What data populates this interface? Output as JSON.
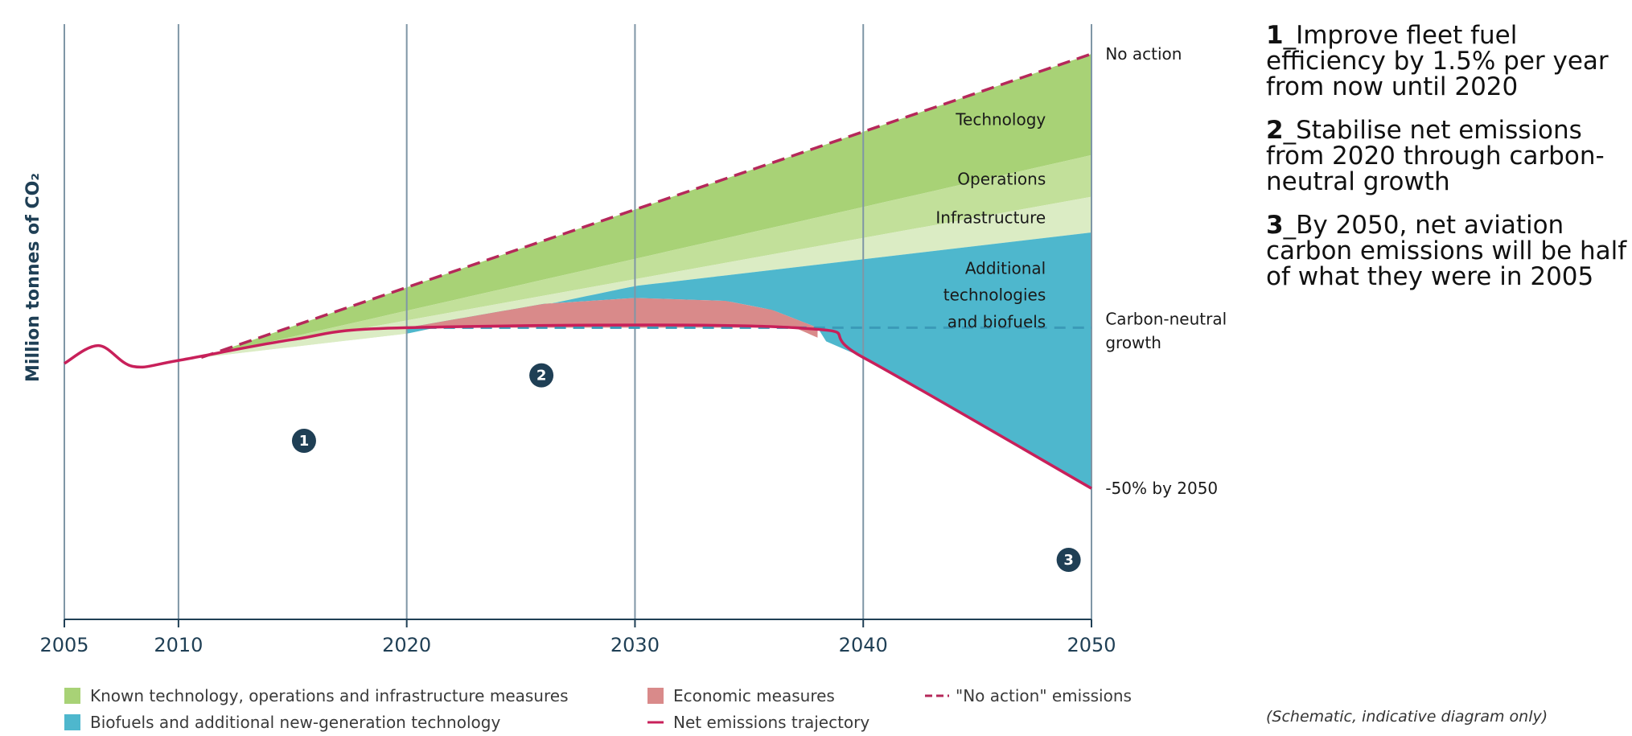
{
  "chart_data": {
    "type": "area",
    "title": "",
    "ylabel": "Million tonnes of CO₂",
    "xlabel": "",
    "xlim": [
      2005,
      2050
    ],
    "ylim": [
      0,
      100
    ],
    "x_ticks": [
      "2005",
      "2010",
      "2020",
      "2030",
      "2040",
      "2050"
    ],
    "grid": true,
    "schematic": true,
    "series": [
      {
        "key": "no_action",
        "name": "\"No action\" emissions",
        "style": "dashed",
        "color": "#b5285a",
        "points": [
          [
            2011,
            44
          ],
          [
            2050,
            95
          ]
        ]
      },
      {
        "key": "tech_top",
        "color": "#a8d276",
        "points": [
          [
            2011,
            44
          ],
          [
            2050,
            78
          ]
        ]
      },
      {
        "key": "ops_top",
        "color": "#c2e09a",
        "points": [
          [
            2011,
            44
          ],
          [
            2050,
            71
          ]
        ]
      },
      {
        "key": "infra_top",
        "color": "#dbecc4",
        "points": [
          [
            2011,
            44
          ],
          [
            2020,
            48
          ],
          [
            2030,
            56
          ],
          [
            2050,
            65
          ]
        ]
      },
      {
        "key": "econ_top",
        "color": "#d98a8a",
        "points": [
          [
            2020,
            49
          ],
          [
            2026,
            53
          ],
          [
            2030,
            54
          ],
          [
            2034,
            53.5
          ],
          [
            2036,
            52
          ],
          [
            2038,
            49
          ]
        ]
      },
      {
        "key": "net",
        "name": "Net emissions trajectory",
        "color": "#c8205a",
        "points": [
          [
            2005,
            43
          ],
          [
            2006.5,
            46
          ],
          [
            2008,
            42.5
          ],
          [
            2010,
            43.5
          ],
          [
            2015,
            47
          ],
          [
            2020,
            49
          ],
          [
            2037,
            49
          ],
          [
            2040,
            44
          ],
          [
            2050,
            22
          ]
        ]
      },
      {
        "key": "carbon_neutral",
        "style": "dashed",
        "color": "#3a9ab8",
        "points": [
          [
            2020,
            49
          ],
          [
            2050,
            49
          ]
        ]
      }
    ],
    "band_labels": [
      {
        "text": "Technology",
        "x": 2048,
        "y": 84
      },
      {
        "text": "Operations",
        "x": 2048,
        "y": 74
      },
      {
        "text": "Infrastructure",
        "x": 2048,
        "y": 67.5
      },
      {
        "text": "Additional",
        "x": 2048,
        "y": 59
      },
      {
        "text": "technologies",
        "x": 2048,
        "y": 54.5
      },
      {
        "text": "and biofuels",
        "x": 2048,
        "y": 50
      }
    ],
    "annotations": [
      {
        "text": "No action",
        "x": 2050.4,
        "y": 95
      },
      {
        "text": "Carbon-neutral",
        "x": 2050.4,
        "y": 50.5
      },
      {
        "text": "growth",
        "x": 2050.4,
        "y": 46.5
      },
      {
        "text": "-50% by 2050",
        "x": 2050.4,
        "y": 22
      }
    ],
    "markers": [
      {
        "label": "1",
        "x": 2015.5,
        "y": 30
      },
      {
        "label": "2",
        "x": 2025.9,
        "y": 41
      },
      {
        "label": "3",
        "x": 2049,
        "y": 10
      }
    ],
    "legend": {
      "placement": "bottom",
      "items": [
        {
          "label": "Known technology, operations and infrastructure measures",
          "swatch": "box",
          "color": "#a8d276"
        },
        {
          "label": "Biofuels and additional new-generation technology",
          "swatch": "box",
          "color": "#4eb7cd"
        },
        {
          "label": "Economic measures",
          "swatch": "box",
          "color": "#d98a8a"
        },
        {
          "label": "Net emissions trajectory",
          "swatch": "line",
          "color": "#c8205a"
        },
        {
          "label": "\"No action\" emissions",
          "swatch": "dashed",
          "color": "#b5285a"
        }
      ]
    },
    "colors": {
      "grid": "#7f96a6",
      "axis": "#1f3f55",
      "technology": "#a8d276",
      "operations": "#c2e09a",
      "infrastructure": "#dbecc4",
      "biofuels": "#4eb7cd",
      "economic": "#d98a8a",
      "marker": "#1f3f55"
    }
  },
  "goals": [
    {
      "num": "1",
      "text": "_Improve fleet fuel efficiency by 1.5% per year from now until 2020"
    },
    {
      "num": "2",
      "text": "_Stabilise net emissions from 2020 through carbon-neutral growth"
    },
    {
      "num": "3",
      "text": "_By 2050, net aviation carbon emissions will be half of what they were in 2005"
    }
  ],
  "note": "(Schematic, indicative diagram only)"
}
